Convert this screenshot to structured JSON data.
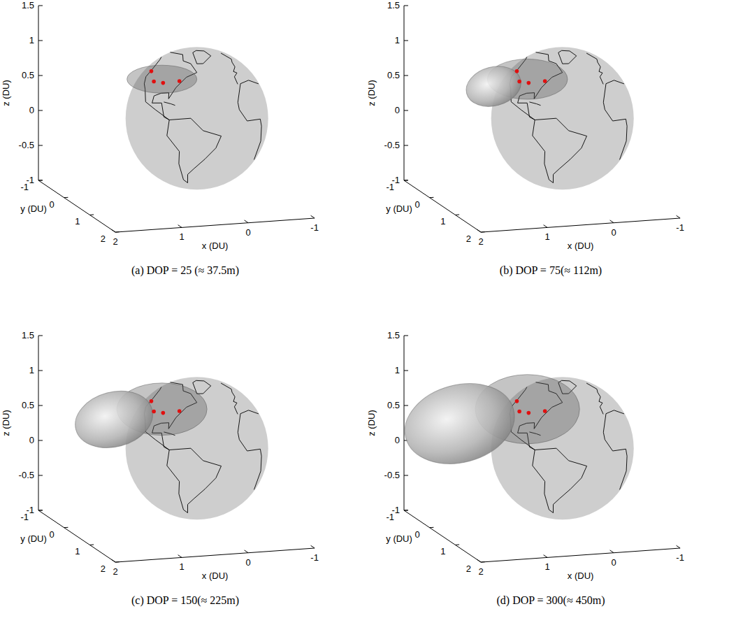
{
  "chart_data": [
    {
      "type": "surface3d",
      "title": "(a) DOP = 25 (≈ 37.5m)",
      "dop": 25,
      "x_label": "x (DU)",
      "y_label": "y (DU)",
      "z_label": "z (DU)",
      "xlim": [
        -1,
        2
      ],
      "ylim": [
        -1,
        2
      ],
      "zlim": [
        -1,
        1.5
      ],
      "xticks": [
        -1,
        0,
        1,
        2
      ],
      "yticks": [
        -1,
        0,
        1,
        2
      ],
      "zticks": [
        -1,
        -0.5,
        0,
        0.5,
        1,
        1.5
      ],
      "stations": [
        {
          "lon": -122,
          "lat": 46
        },
        {
          "lon": -105,
          "lat": 38
        },
        {
          "lon": -92,
          "lat": 38
        },
        {
          "lon": -74,
          "lat": 41
        }
      ]
    },
    {
      "type": "surface3d",
      "title": "(b) DOP = 75(≈ 112m)",
      "dop": 75,
      "x_label": "x (DU)",
      "y_label": "y (DU)",
      "z_label": "z (DU)",
      "xlim": [
        -1,
        2
      ],
      "ylim": [
        -1,
        2
      ],
      "zlim": [
        -1,
        1.5
      ],
      "xticks": [
        -1,
        0,
        1,
        2
      ],
      "yticks": [
        -1,
        0,
        1,
        2
      ],
      "zticks": [
        -1,
        -0.5,
        0,
        0.5,
        1,
        1.5
      ],
      "stations": [
        {
          "lon": -122,
          "lat": 46
        },
        {
          "lon": -105,
          "lat": 38
        },
        {
          "lon": -92,
          "lat": 38
        },
        {
          "lon": -74,
          "lat": 41
        }
      ]
    },
    {
      "type": "surface3d",
      "title": "(c) DOP = 150(≈ 225m)",
      "dop": 150,
      "x_label": "x (DU)",
      "y_label": "y (DU)",
      "z_label": "z (DU)",
      "xlim": [
        -1,
        2
      ],
      "ylim": [
        -1,
        2
      ],
      "zlim": [
        -1,
        1.5
      ],
      "xticks": [
        -1,
        0,
        1,
        2
      ],
      "yticks": [
        -1,
        0,
        1,
        2
      ],
      "zticks": [
        -1,
        -0.5,
        0,
        0.5,
        1,
        1.5
      ],
      "stations": [
        {
          "lon": -122,
          "lat": 46
        },
        {
          "lon": -105,
          "lat": 38
        },
        {
          "lon": -92,
          "lat": 38
        },
        {
          "lon": -74,
          "lat": 41
        }
      ]
    },
    {
      "type": "surface3d",
      "title": "(d) DOP = 300(≈ 450m)",
      "dop": 300,
      "x_label": "x (DU)",
      "y_label": "y (DU)",
      "z_label": "z (DU)",
      "xlim": [
        -1,
        2
      ],
      "ylim": [
        -1,
        2
      ],
      "zlim": [
        -1,
        1.5
      ],
      "xticks": [
        -1,
        0,
        1,
        2
      ],
      "yticks": [
        -1,
        0,
        1,
        2
      ],
      "zticks": [
        -1,
        -0.5,
        0,
        0.5,
        1,
        1.5
      ],
      "stations": [
        {
          "lon": -122,
          "lat": 46
        },
        {
          "lon": -105,
          "lat": 38
        },
        {
          "lon": -92,
          "lat": 38
        },
        {
          "lon": -74,
          "lat": 41
        }
      ]
    }
  ]
}
